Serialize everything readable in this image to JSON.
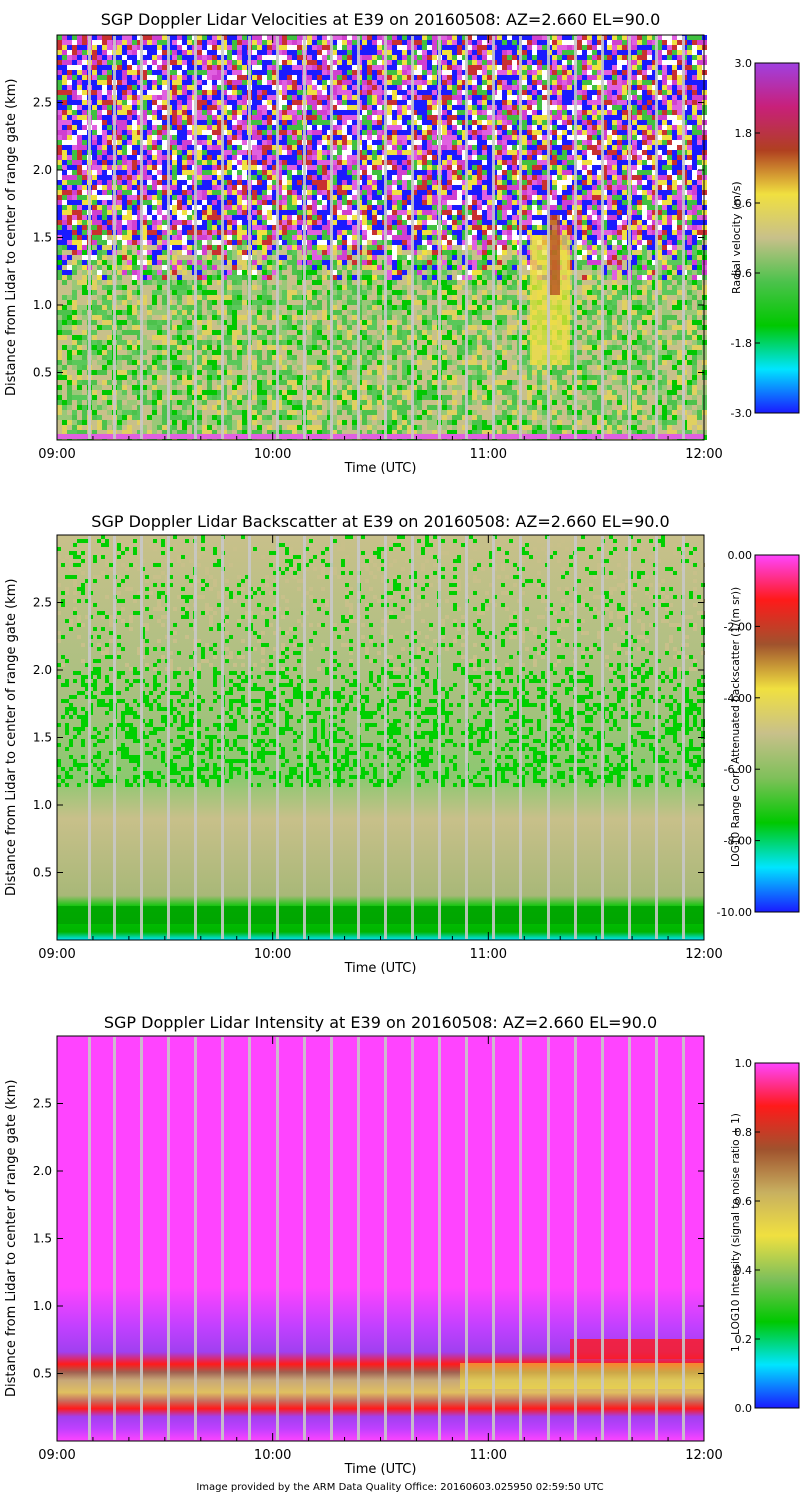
{
  "chart_data": [
    {
      "type": "heatmap",
      "title": "SGP Doppler Lidar Velocities at E39 on 20160508: AZ=2.660 EL=90.0",
      "xlabel": "Time (UTC)",
      "ylabel": "Distance from Lidar to center of range gate (km)",
      "xticks": [
        "09:00",
        "10:00",
        "11:00",
        "12:00"
      ],
      "xlim": [
        9.0,
        12.0
      ],
      "yticks": [
        0.5,
        1.0,
        1.5,
        2.0,
        2.5
      ],
      "ytick_labels": [
        "0.5",
        "1.0",
        "1.5",
        "2.0",
        "2.5"
      ],
      "ylim": [
        0.0,
        3.0
      ],
      "colorbar": {
        "label": "Radial velocity (m/s)",
        "range": [
          -3.0,
          3.0
        ],
        "ticks": [
          "3.0",
          "1.8",
          "0.6",
          "-0.6",
          "-1.8",
          "-3.0"
        ]
      },
      "description_layers": {
        "noise_above_km": 1.45,
        "boundary_layer_top_km": 1.3,
        "updraft_region_time": [
          11.2,
          11.4
        ]
      }
    },
    {
      "type": "heatmap",
      "title": "SGP Doppler Lidar Backscatter at E39 on 20160508: AZ=2.660 EL=90.0",
      "xlabel": "Time (UTC)",
      "ylabel": "Distance from Lidar to center of range gate (km)",
      "xticks": [
        "09:00",
        "10:00",
        "11:00",
        "12:00"
      ],
      "xlim": [
        9.0,
        12.0
      ],
      "yticks": [
        0.5,
        1.0,
        1.5,
        2.0,
        2.5
      ],
      "ytick_labels": [
        "0.5",
        "1.0",
        "1.5",
        "2.0",
        "2.5"
      ],
      "ylim": [
        0.0,
        3.0
      ],
      "colorbar": {
        "label": "LOG10 Range Corr. Attenuated backscatter (1/(m sr))",
        "range": [
          -10.0,
          0.0
        ],
        "ticks": [
          "0.00",
          "-2.00",
          "-4.00",
          "-6.00",
          "-8.00",
          "-10.00"
        ]
      },
      "description_layers": {
        "near_surface_green_band_km": [
          0.05,
          0.3
        ],
        "aerosol_layer_km": [
          0.3,
          1.0
        ]
      }
    },
    {
      "type": "heatmap",
      "title": "SGP Doppler Lidar Intensity at E39 on 20160508: AZ=2.660 EL=90.0",
      "xlabel": "Time (UTC)",
      "ylabel": "Distance from Lidar to center of range gate (km)",
      "xticks": [
        "09:00",
        "10:00",
        "11:00",
        "12:00"
      ],
      "xlim": [
        9.0,
        12.0
      ],
      "yticks": [
        0.5,
        1.0,
        1.5,
        2.0,
        2.5
      ],
      "ytick_labels": [
        "0.5",
        "1.0",
        "1.5",
        "2.0",
        "2.5"
      ],
      "ylim": [
        0.0,
        3.0
      ],
      "colorbar": {
        "label": "1 - LOG10 Intensity (signal to noise ratio + 1)",
        "range": [
          0.0,
          1.0
        ],
        "ticks": [
          "1.0",
          "0.8",
          "0.6",
          "0.4",
          "0.2",
          "0.0"
        ]
      },
      "description_layers": {
        "upper_red_band_km": 0.55,
        "yellow_core_km": 0.38,
        "lower_red_band_km": 0.25
      }
    }
  ],
  "footer": "Image provided by the ARM Data Quality Office: 20160603.025950 02:59:50 UTC"
}
